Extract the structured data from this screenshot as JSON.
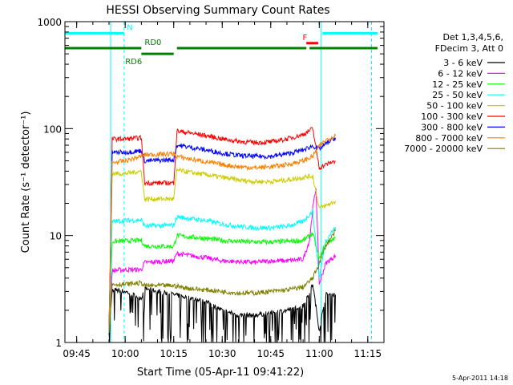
{
  "chart_data": {
    "type": "line",
    "title": "HESSI Observing Summary Count Rates",
    "xlabel": "Start Time (05-Apr-11 09:41:22)",
    "ylabel": "Count Rate (s⁻¹ detector⁻¹)",
    "yscale": "log",
    "ylim": [
      1,
      1000
    ],
    "yticks": [
      {
        "v": 1,
        "label": "1"
      },
      {
        "v": 10,
        "label": "10"
      },
      {
        "v": 100,
        "label": "100"
      },
      {
        "v": 1000,
        "label": "1000"
      }
    ],
    "xlim": [
      "09:41:22",
      "11:20:00"
    ],
    "xticks": [
      "09:45",
      "10:00",
      "10:15",
      "10:30",
      "10:45",
      "11:00",
      "11:15"
    ],
    "grid": false,
    "legend_placement": "right",
    "legend_header": [
      "Det 1,3,4,5,6,",
      "FDecim 3, Att 0"
    ],
    "series": [
      {
        "name": "3 - 6 keV",
        "color": "#000000",
        "x": [
          "09:55",
          "09:56",
          "10:00",
          "10:05",
          "10:06",
          "10:15",
          "10:20",
          "10:25",
          "10:30",
          "10:35",
          "10:40",
          "10:45",
          "10:50",
          "10:55",
          "10:58",
          "11:00",
          "11:02",
          "11:05"
        ],
        "y": [
          1.3,
          3.1,
          3.0,
          2.6,
          3.2,
          2.8,
          2.6,
          2.4,
          2.0,
          1.8,
          1.8,
          1.9,
          2.0,
          2.2,
          3.5,
          1.3,
          2.8,
          2.8
        ]
      },
      {
        "name": "6 - 12 keV",
        "color": "#ff00ff",
        "x": [
          "09:55",
          "09:56",
          "10:00",
          "10:05",
          "10:06",
          "10:15",
          "10:16",
          "10:20",
          "10:25",
          "10:30",
          "10:35",
          "10:40",
          "10:45",
          "10:50",
          "10:55",
          "10:57",
          "10:58",
          "10:59",
          "11:00",
          "11:02",
          "11:05"
        ],
        "y": [
          1.3,
          4.7,
          4.8,
          4.8,
          5.6,
          5.8,
          6.8,
          6.5,
          6.2,
          5.8,
          5.7,
          5.6,
          5.8,
          5.8,
          6.0,
          9.0,
          18.0,
          28.0,
          3.5,
          5.5,
          6.5
        ]
      },
      {
        "name": "12 - 25 keV",
        "color": "#00ff00",
        "x": [
          "09:55",
          "09:56",
          "10:00",
          "10:05",
          "10:06",
          "10:15",
          "10:16",
          "10:20",
          "10:25",
          "10:30",
          "10:35",
          "10:40",
          "10:45",
          "10:50",
          "10:55",
          "10:58",
          "11:00",
          "11:02",
          "11:05"
        ],
        "y": [
          1.3,
          8.8,
          8.9,
          9.0,
          8.0,
          7.9,
          10.0,
          9.7,
          9.4,
          9.0,
          8.8,
          8.7,
          8.7,
          8.8,
          9.0,
          10.5,
          6.0,
          8.5,
          9.5
        ]
      },
      {
        "name": "25 - 50 keV",
        "color": "#00ffff",
        "x": [
          "09:55",
          "09:56",
          "10:00",
          "10:05",
          "10:06",
          "10:15",
          "10:16",
          "10:20",
          "10:25",
          "10:30",
          "10:35",
          "10:40",
          "10:45",
          "10:50",
          "10:55",
          "10:58",
          "11:00",
          "11:02",
          "11:05"
        ],
        "y": [
          1.3,
          13.5,
          13.8,
          14.0,
          12.3,
          12.5,
          15.0,
          14.4,
          13.8,
          12.8,
          12.2,
          11.8,
          11.8,
          12.2,
          13.5,
          17.0,
          4.0,
          9.0,
          12.0
        ]
      },
      {
        "name": "50 - 100 keV",
        "color": "#cccc00",
        "x": [
          "09:55",
          "09:56",
          "10:00",
          "10:05",
          "10:06",
          "10:15",
          "10:16",
          "10:20",
          "10:25",
          "10:30",
          "10:35",
          "10:40",
          "10:45",
          "10:50",
          "10:55",
          "10:58",
          "11:00",
          "11:02",
          "11:05"
        ],
        "y": [
          1.3,
          38,
          38,
          40,
          22,
          22,
          41,
          39,
          37,
          35,
          33,
          32,
          32,
          33,
          35,
          36,
          18,
          19,
          21
        ]
      },
      {
        "name": "100 - 300 keV",
        "color": "#ff0000",
        "x": [
          "09:55",
          "09:56",
          "10:00",
          "10:05",
          "10:06",
          "10:15",
          "10:16",
          "10:20",
          "10:25",
          "10:30",
          "10:35",
          "10:40",
          "10:45",
          "10:50",
          "10:55",
          "10:58",
          "11:00",
          "11:02",
          "11:05"
        ],
        "y": [
          1.3,
          80,
          80,
          82,
          31,
          31,
          95,
          91,
          86,
          80,
          76,
          74,
          75,
          80,
          88,
          100,
          43,
          46,
          50
        ]
      },
      {
        "name": "300 - 800 keV",
        "color": "#0000ff",
        "x": [
          "09:55",
          "09:56",
          "10:00",
          "10:05",
          "10:06",
          "10:15",
          "10:16",
          "10:20",
          "10:25",
          "10:30",
          "10:35",
          "10:40",
          "10:45",
          "10:50",
          "10:55",
          "10:58",
          "11:00",
          "11:02",
          "11:05"
        ],
        "y": [
          1.3,
          60,
          60,
          62,
          50,
          51,
          70,
          67,
          63,
          59,
          56,
          55,
          55,
          58,
          63,
          69,
          64,
          72,
          82
        ]
      },
      {
        "name": "800 - 7000 keV",
        "color": "#ff8000",
        "x": [
          "09:55",
          "09:56",
          "10:00",
          "10:05",
          "10:06",
          "10:15",
          "10:16",
          "10:20",
          "10:25",
          "10:30",
          "10:35",
          "10:40",
          "10:45",
          "10:50",
          "10:55",
          "10:58",
          "11:00",
          "11:02",
          "11:05"
        ],
        "y": [
          1.3,
          48,
          50,
          55,
          57,
          58,
          55,
          52,
          49,
          46,
          44,
          43,
          44,
          46,
          50,
          55,
          68,
          78,
          86
        ]
      },
      {
        "name": "7000 - 20000 keV",
        "color": "#808000",
        "x": [
          "09:55",
          "09:56",
          "10:00",
          "10:05",
          "10:06",
          "10:15",
          "10:20",
          "10:25",
          "10:30",
          "10:35",
          "10:40",
          "10:45",
          "10:50",
          "10:55",
          "10:58",
          "11:00",
          "11:02",
          "11:05"
        ],
        "y": [
          1.3,
          3.5,
          3.5,
          3.6,
          3.4,
          3.4,
          3.2,
          3.1,
          3.0,
          2.9,
          2.9,
          3.0,
          3.1,
          3.3,
          4.0,
          5.5,
          8.0,
          11.0
        ]
      }
    ],
    "vlines": [
      {
        "t": "09:41:22",
        "style": "solid",
        "color": "#00ffff"
      },
      {
        "t": "09:55:30",
        "style": "solid",
        "color": "#00ffff"
      },
      {
        "t": "09:59:40",
        "style": "dashed",
        "color": "#00ffff"
      },
      {
        "t": "11:00:30",
        "style": "solid",
        "color": "#00ffff"
      },
      {
        "t": "11:16:10",
        "style": "dashed",
        "color": "#00ffff"
      }
    ],
    "flag_bars": [
      {
        "label": "N",
        "color": "#00ffff",
        "y": 780,
        "segments": [
          [
            "09:41:22",
            "09:59:40"
          ],
          [
            "11:01:00",
            "11:18:00"
          ]
        ],
        "label_at": "10:00:30"
      },
      {
        "label": "F",
        "color": "#ff0000",
        "y": 630,
        "segments": [
          [
            "10:56:00",
            "10:59:40"
          ]
        ],
        "label_at": "10:54:50"
      },
      {
        "label": "RD0",
        "color": "#008000",
        "y": 565,
        "segments": [
          [
            "09:41:22",
            "10:05:00"
          ],
          [
            "10:16:00",
            "10:56:00"
          ],
          [
            "10:57:00",
            "11:18:00"
          ]
        ],
        "label_at": "10:06:00"
      },
      {
        "label": "RD6",
        "color": "#008000",
        "y": 500,
        "segments": [
          [
            "10:05:00",
            "10:15:00"
          ]
        ],
        "label_at": "10:00:00"
      }
    ]
  },
  "timestamp": "5-Apr-2011 14:18"
}
